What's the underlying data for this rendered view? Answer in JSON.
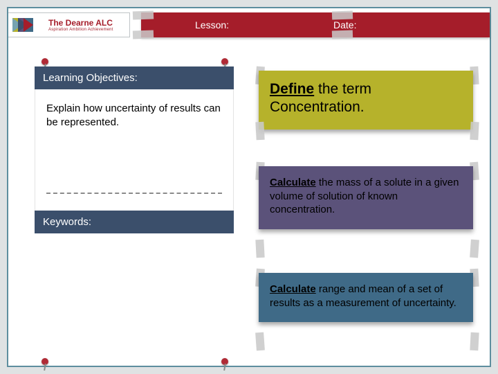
{
  "header": {
    "logo_name": "The Dearne",
    "logo_suffix": "ALC",
    "logo_tagline": "Aspiration Ambition Achievement",
    "lesson_label": "Lesson:",
    "date_label": "Date:"
  },
  "left": {
    "objectives_heading": "Learning Objectives:",
    "objective_text": "Explain how uncertainty of results can be represented.",
    "keywords_heading": "Keywords:"
  },
  "cards": {
    "card1_bold": "Define",
    "card1_rest": " the term Concentration.",
    "card2_bold": "Calculate",
    "card2_rest": " the mass of a solute in a given volume of solution of known concentration.",
    "card3_bold": "Calculate",
    "card3_rest": " range and mean of a set of results as a measurement of uncertainty."
  },
  "colors": {
    "accent_red": "#a51d2a",
    "accent_navy": "#3b4f6b",
    "card1_bg": "#b6b22b",
    "card2_bg": "#5b527a",
    "card3_bg": "#3f6a87",
    "page_border": "#5d8e9e",
    "outer_bg": "#dfe2e3"
  }
}
